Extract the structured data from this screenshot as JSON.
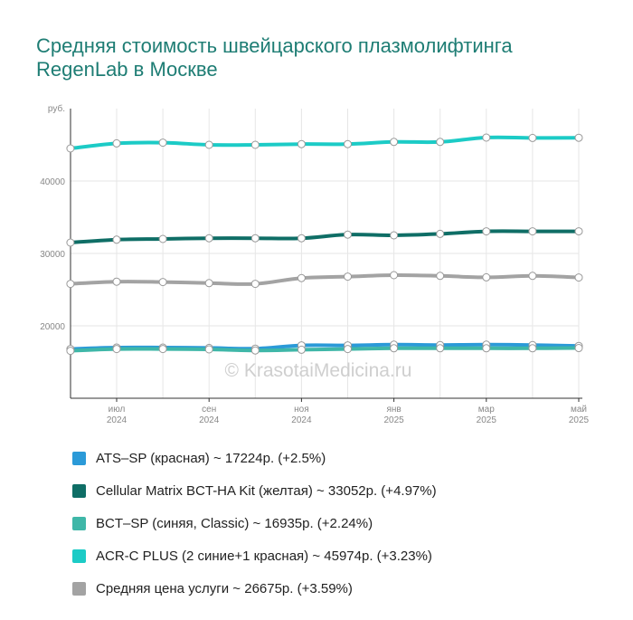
{
  "title": "Средняя стоимость швейцарского плазмолифтинга RegenLab в Москве",
  "watermark": "© KrasotaiMedicina.ru",
  "chart_data": {
    "type": "line",
    "ylabel": "руб.",
    "yticks": [
      20000,
      30000,
      40000
    ],
    "ylim": [
      10000,
      50000
    ],
    "grid": true,
    "legend_position": "bottom",
    "x": [
      "2024-06",
      "2024-07",
      "2024-08",
      "2024-09",
      "2024-10",
      "2024-11",
      "2024-12",
      "2025-01",
      "2025-02",
      "2025-03",
      "2025-04",
      "2025-05"
    ],
    "x_tick_labels": [
      {
        "month": "июл",
        "year": "2024"
      },
      {
        "month": "сен",
        "year": "2024"
      },
      {
        "month": "ноя",
        "year": "2024"
      },
      {
        "month": "янв",
        "year": "2025"
      },
      {
        "month": "мар",
        "year": "2025"
      },
      {
        "month": "май",
        "year": "2025"
      }
    ],
    "series": [
      {
        "name": "ATS–SP (красная)",
        "color": "#2b9ad8",
        "values": [
          16800,
          17000,
          17000,
          16950,
          16850,
          17300,
          17300,
          17400,
          17350,
          17400,
          17350,
          17224
        ]
      },
      {
        "name": "Cellular Matrix BCT-HA Kit (желтая)",
        "color": "#0f6e66",
        "values": [
          31500,
          31900,
          32000,
          32100,
          32100,
          32100,
          32600,
          32500,
          32700,
          33050,
          33050,
          33052
        ]
      },
      {
        "name": "BCT–SP (синяя, Classic)",
        "color": "#3fb7a8",
        "values": [
          16550,
          16800,
          16800,
          16750,
          16600,
          16700,
          16800,
          16900,
          16900,
          16900,
          16900,
          16935
        ]
      },
      {
        "name": "ACR-C PLUS (2 синие+1 красная)",
        "color": "#1ccbc6",
        "values": [
          44500,
          45200,
          45300,
          45000,
          45000,
          45100,
          45100,
          45400,
          45400,
          46000,
          45950,
          45974
        ]
      },
      {
        "name": "Средняя цена услуги",
        "color": "#a3a3a3",
        "values": [
          25800,
          26100,
          26050,
          25900,
          25800,
          26600,
          26800,
          27000,
          26900,
          26700,
          26900,
          26675
        ]
      }
    ]
  },
  "legend": [
    {
      "label": "ATS–SP (красная) ~ 17224р. (+2.5%)",
      "color": "#2b9ad8"
    },
    {
      "label": "Cellular Matrix BCT-HA Kit (желтая) ~ 33052р. (+4.97%)",
      "color": "#0f6e66"
    },
    {
      "label": "BCT–SP (синяя, Classic) ~ 16935р. (+2.24%)",
      "color": "#3fb7a8"
    },
    {
      "label": "ACR-C PLUS (2 синие+1 красная) ~ 45974р. (+3.23%)",
      "color": "#1ccbc6"
    },
    {
      "label": "Средняя цена услуги ~ 26675р. (+3.59%)",
      "color": "#a3a3a3"
    }
  ]
}
